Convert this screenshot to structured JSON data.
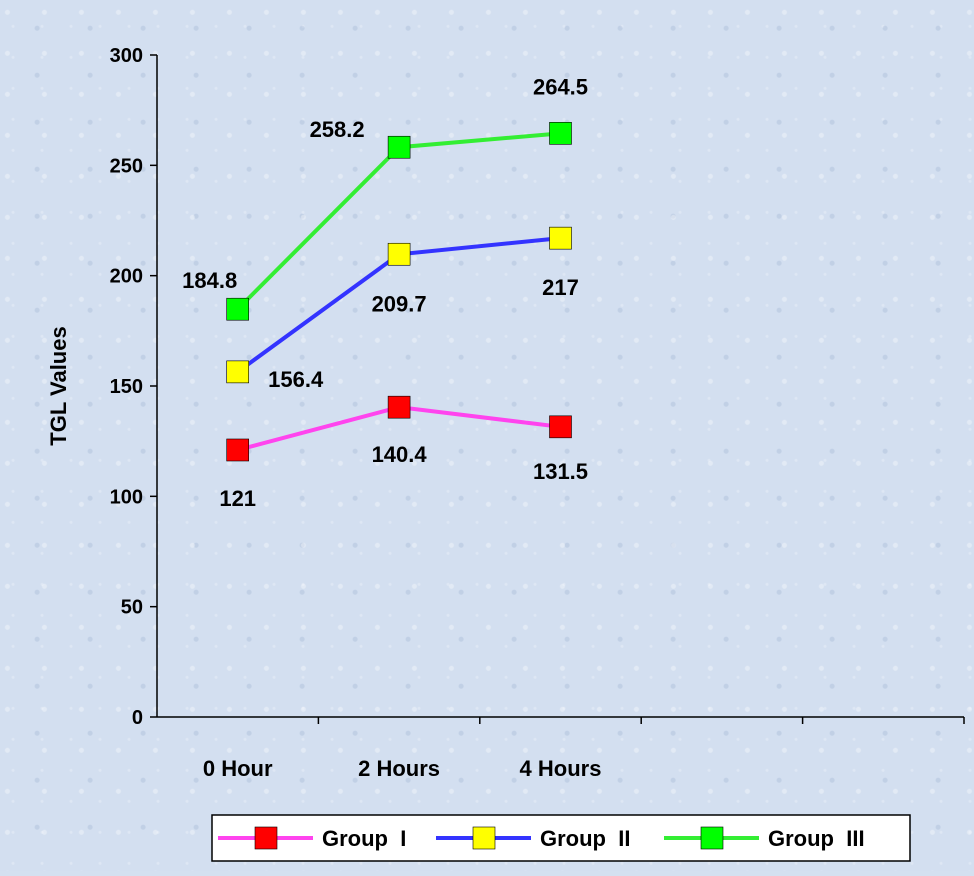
{
  "chart_data": {
    "type": "line",
    "title": "",
    "xlabel": "",
    "ylabel": "TGL Values",
    "ylim": [
      0,
      300
    ],
    "yticks": [
      0,
      50,
      100,
      150,
      200,
      250,
      300
    ],
    "categories": [
      "0 Hour",
      "2 Hours",
      "4 Hours"
    ],
    "series": [
      {
        "name": "Group  I",
        "values": [
          121,
          140.4,
          131.5
        ],
        "line_color": "#ff44ee",
        "marker_color": "#ff0000",
        "labels": [
          "121",
          "140.4",
          "131.5"
        ]
      },
      {
        "name": "Group  II",
        "values": [
          156.4,
          209.7,
          217
        ],
        "line_color": "#3333ff",
        "marker_color": "#ffff00",
        "labels": [
          "156.4",
          "209.7",
          "217"
        ]
      },
      {
        "name": "Group  III",
        "values": [
          184.8,
          258.2,
          264.5
        ],
        "line_color": "#33ee33",
        "marker_color": "#00ff00",
        "labels": [
          "184.8",
          "258.2",
          "264.5"
        ]
      }
    ],
    "legend_position": "bottom-right",
    "grid": false
  }
}
